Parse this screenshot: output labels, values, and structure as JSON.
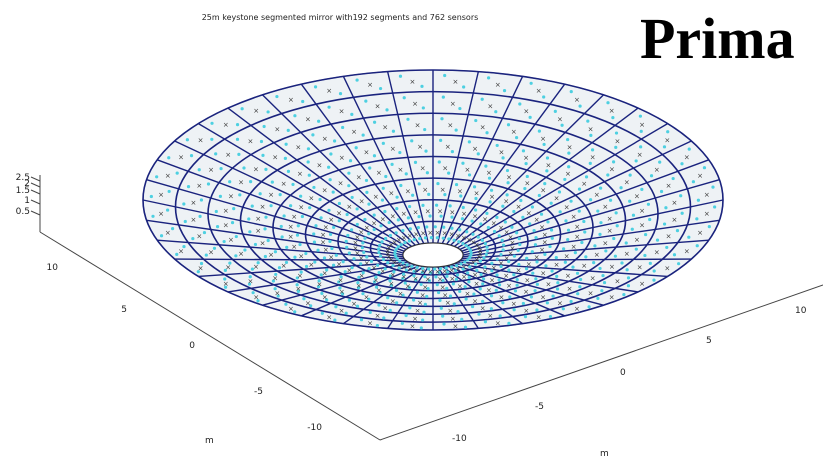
{
  "plot": {
    "title": "25m keystone segmented mirror with192 segments and 762 sensors",
    "z_ticks": [
      2.5,
      2,
      1.5,
      1,
      0.5
    ],
    "left_axis_ticks": [
      10,
      5,
      0,
      -5,
      -10
    ],
    "left_axis_label": "m",
    "right_axis_ticks": [
      -10,
      -5,
      0,
      5,
      10
    ],
    "right_axis_label": "m"
  },
  "overlay": {
    "heading": "Prima"
  }
}
